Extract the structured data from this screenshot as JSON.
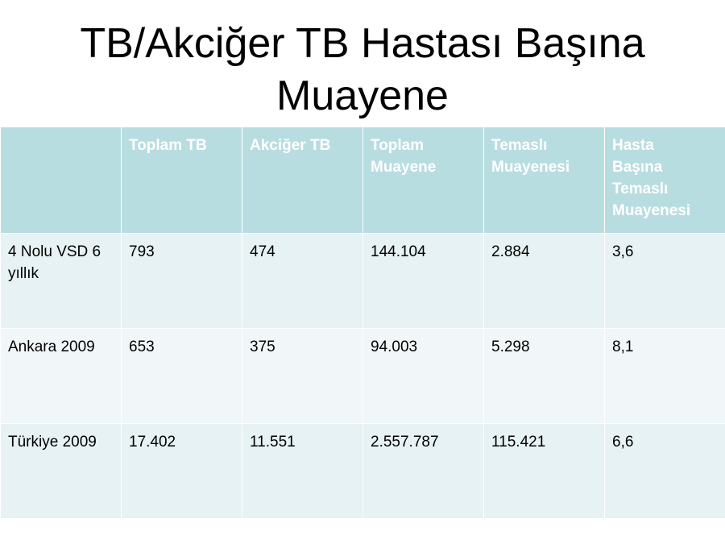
{
  "title": "TB/Akciğer TB Hastası Başına Muayene",
  "table": {
    "header": [
      "",
      "Toplam TB",
      "Akciğer TB",
      "Toplam Muayene",
      "Temaslı Muayenesi",
      "Hasta Başına Temaslı Muayenesi"
    ],
    "rows": [
      [
        "4 Nolu VSD 6 yıllık",
        "793",
        "474",
        "144.104",
        "2.884",
        "3,6"
      ],
      [
        "Ankara 2009",
        "653",
        "375",
        "94.003",
        "5.298",
        "8,1"
      ],
      [
        "Türkiye 2009",
        "17.402",
        "11.551",
        "2.557.787",
        "115.421",
        "6,6"
      ]
    ]
  }
}
